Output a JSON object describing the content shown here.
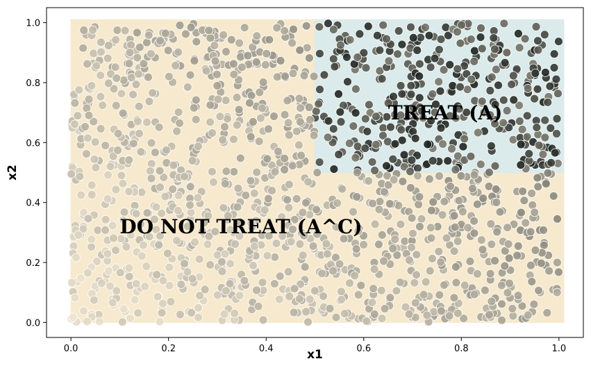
{
  "chart_data": {
    "type": "scatter",
    "title": "",
    "xlabel": "x1",
    "ylabel": "x2",
    "xlim": [
      -0.05,
      1.05
    ],
    "ylim": [
      -0.05,
      1.05
    ],
    "xticks": [
      0.0,
      0.2,
      0.4,
      0.6,
      0.8,
      1.0
    ],
    "yticks": [
      0.0,
      0.2,
      0.4,
      0.6,
      0.8,
      1.0
    ],
    "xtick_labels": [
      "0.0",
      "0.2",
      "0.4",
      "0.6",
      "0.8",
      "1.0"
    ],
    "ytick_labels": [
      "0.0",
      "0.2",
      "0.4",
      "0.6",
      "0.8",
      "1.0"
    ],
    "grid": false,
    "point_count_approx": 1500,
    "point_color_scale": [
      "#efe4cf",
      "#1c2320"
    ],
    "regions": [
      {
        "id": "do-not-treat",
        "label": "DO NOT TREAT (A^C)",
        "color": "#f6e9ce",
        "rects": [
          {
            "x0": 0.0,
            "x1": 0.5,
            "y0": 0.0,
            "y1": 1.01
          },
          {
            "x0": 0.5,
            "x1": 1.01,
            "y0": 0.0,
            "y1": 0.5
          }
        ],
        "label_pos": {
          "x": 0.1,
          "y": 0.32
        }
      },
      {
        "id": "treat",
        "label": "TREAT (A)",
        "color": "#dbeaea",
        "rects": [
          {
            "x0": 0.5,
            "x1": 1.01,
            "y0": 0.5,
            "y1": 1.01
          }
        ],
        "label_pos": {
          "x": 0.65,
          "y": 0.7
        }
      }
    ]
  }
}
